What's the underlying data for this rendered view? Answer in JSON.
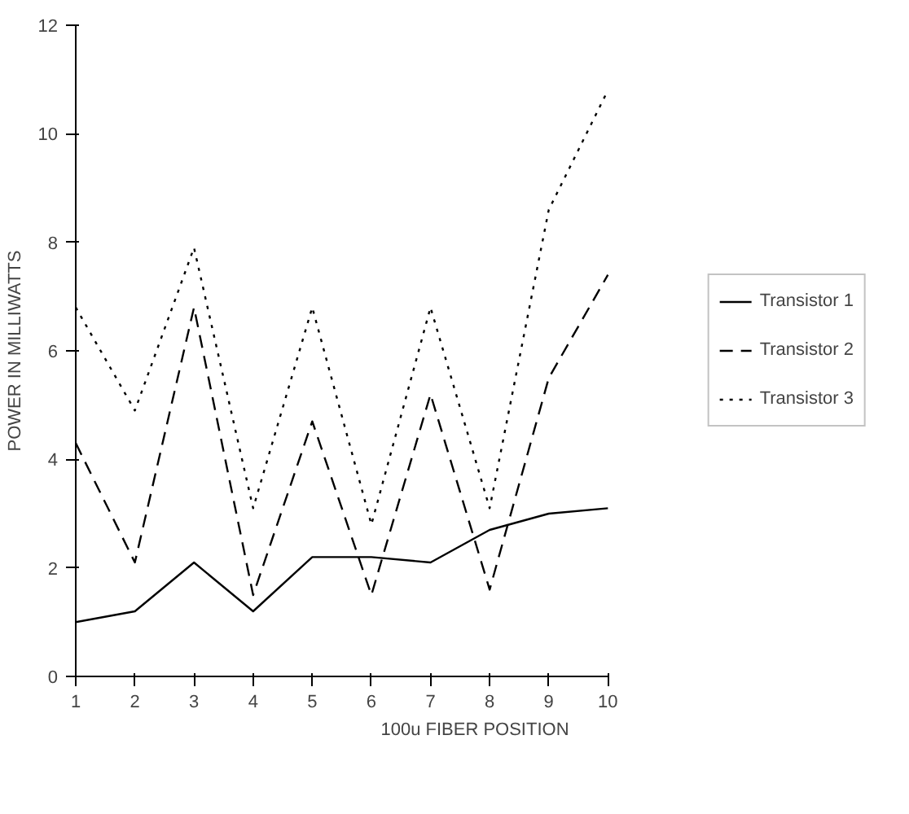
{
  "chart_data": {
    "type": "line",
    "xlabel": "100u FIBER POSITION",
    "ylabel": "POWER IN MILLIWATTS",
    "x": [
      1,
      2,
      3,
      4,
      5,
      6,
      7,
      8,
      9,
      10
    ],
    "xlim": [
      1,
      10
    ],
    "xticks": [
      1,
      2,
      3,
      4,
      5,
      6,
      7,
      8,
      9,
      10
    ],
    "ylim": [
      0,
      12
    ],
    "yticks": [
      0,
      2,
      4,
      6,
      8,
      10,
      12
    ],
    "series": [
      {
        "name": "Transistor 1",
        "color": "#000000",
        "line_style": "solid",
        "values": [
          1.0,
          1.2,
          2.1,
          1.2,
          2.2,
          2.2,
          2.1,
          2.7,
          3.0,
          3.1
        ]
      },
      {
        "name": "Transistor 2",
        "color": "#000000",
        "line_style": "dashed",
        "values": [
          4.3,
          2.1,
          6.8,
          1.5,
          4.7,
          1.5,
          5.2,
          1.6,
          5.5,
          7.4
        ]
      },
      {
        "name": "Transistor 3",
        "color": "#000000",
        "line_style": "dotted",
        "values": [
          6.8,
          4.9,
          7.9,
          3.1,
          6.8,
          2.8,
          6.8,
          3.1,
          8.6,
          10.8
        ]
      }
    ],
    "legend": "right",
    "grid": false,
    "marker": "none"
  }
}
